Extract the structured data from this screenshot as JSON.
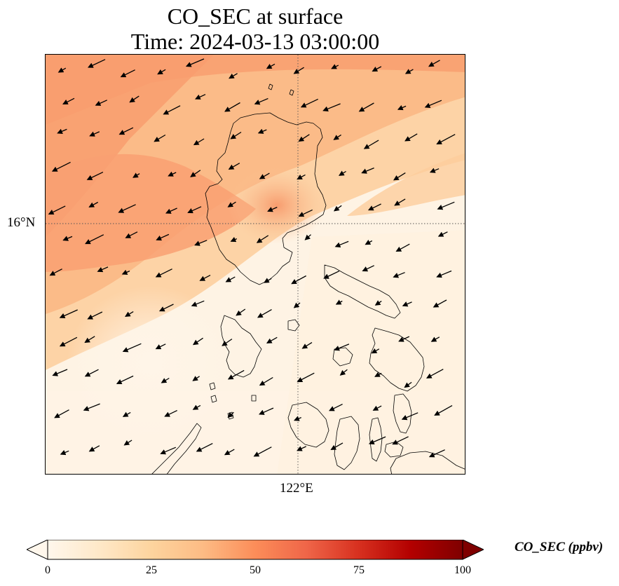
{
  "title": {
    "line1": "CO_SEC at surface",
    "line2": "Time: 2024-03-13 03:00:00"
  },
  "map": {
    "gridlines": {
      "lat": "16°N",
      "lon": "122°E",
      "style": "dotted"
    },
    "field_colors": [
      "#fff5e9",
      "#fdd9b0",
      "#fbb27c",
      "#f58f62"
    ],
    "coastline_color": "#000000",
    "wind_vectors": "uniform arrows pointing mostly west-southwest"
  },
  "colorbar": {
    "label": "CO_SEC (ppbv)",
    "ticks": [
      "0",
      "25",
      "50",
      "75",
      "100"
    ],
    "min": 0,
    "max": 100,
    "colormap": "OrRd",
    "extend": "both",
    "colors": [
      "#fff7ec",
      "#fee8c8",
      "#fdd49e",
      "#fdbb84",
      "#fc8d59",
      "#ef6548",
      "#d7301f",
      "#b30000",
      "#7f0000"
    ]
  }
}
